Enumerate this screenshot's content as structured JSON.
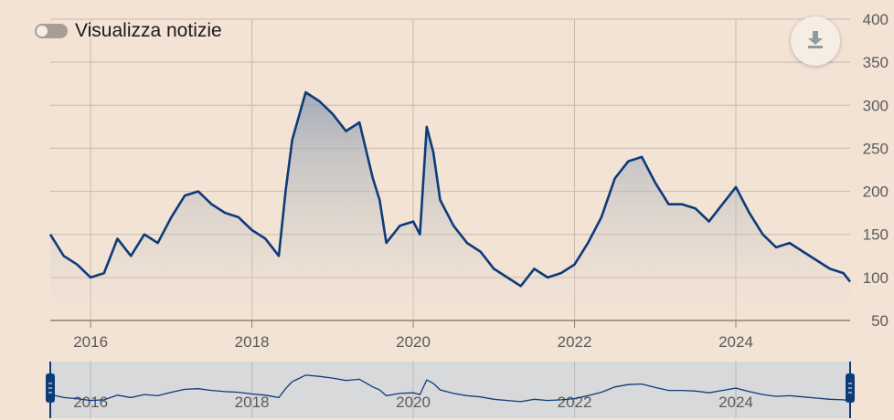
{
  "toggle": {
    "label": "Visualizza notizie",
    "state": "off"
  },
  "download": {
    "icon": "download-icon"
  },
  "colors": {
    "line": "#0d3b7a",
    "background": "#f2e3d5",
    "grid": "#c8b9ac",
    "navigator_bg": "#d8d9db"
  },
  "chart_data": {
    "type": "area",
    "title": "",
    "xlabel": "",
    "ylabel": "",
    "x_range": [
      "2015-07",
      "2025-06"
    ],
    "ylim": [
      50,
      400
    ],
    "y_ticks": [
      "400",
      "350",
      "300",
      "250",
      "200",
      "150",
      "100",
      "50"
    ],
    "x_ticks": [
      "2016",
      "2018",
      "2020",
      "2022",
      "2024"
    ],
    "grid": true,
    "y_axis_position": "right",
    "series": [
      {
        "x": [
          "2015-07",
          "2015-09",
          "2015-11",
          "2016-01",
          "2016-03",
          "2016-05",
          "2016-07",
          "2016-09",
          "2016-11",
          "2017-01",
          "2017-03",
          "2017-05",
          "2017-07",
          "2017-09",
          "2017-11",
          "2018-01",
          "2018-03",
          "2018-05",
          "2018-06",
          "2018-07",
          "2018-09",
          "2018-11",
          "2019-01",
          "2019-03",
          "2019-05",
          "2019-07",
          "2019-08",
          "2019-09",
          "2019-11",
          "2020-01",
          "2020-02",
          "2020-03",
          "2020-04",
          "2020-05",
          "2020-07",
          "2020-09",
          "2020-11",
          "2021-01",
          "2021-03",
          "2021-05",
          "2021-07",
          "2021-09",
          "2021-11",
          "2022-01",
          "2022-03",
          "2022-05",
          "2022-07",
          "2022-09",
          "2022-11",
          "2023-01",
          "2023-03",
          "2023-05",
          "2023-07",
          "2023-09",
          "2023-11",
          "2024-01",
          "2024-03",
          "2024-05",
          "2024-07",
          "2024-09",
          "2024-11",
          "2025-01",
          "2025-03",
          "2025-05",
          "2025-06"
        ],
        "values": [
          150,
          125,
          115,
          100,
          105,
          145,
          125,
          150,
          140,
          170,
          195,
          200,
          185,
          175,
          170,
          155,
          145,
          125,
          200,
          260,
          315,
          305,
          290,
          270,
          280,
          215,
          190,
          140,
          160,
          165,
          150,
          275,
          245,
          190,
          160,
          140,
          130,
          110,
          100,
          90,
          110,
          100,
          105,
          115,
          140,
          170,
          215,
          235,
          240,
          210,
          185,
          185,
          180,
          165,
          185,
          205,
          175,
          150,
          135,
          140,
          130,
          120,
          110,
          105,
          95
        ]
      }
    ],
    "navigator": {
      "x_ticks": [
        "2016",
        "2018",
        "2020",
        "2022",
        "2024"
      ]
    }
  }
}
